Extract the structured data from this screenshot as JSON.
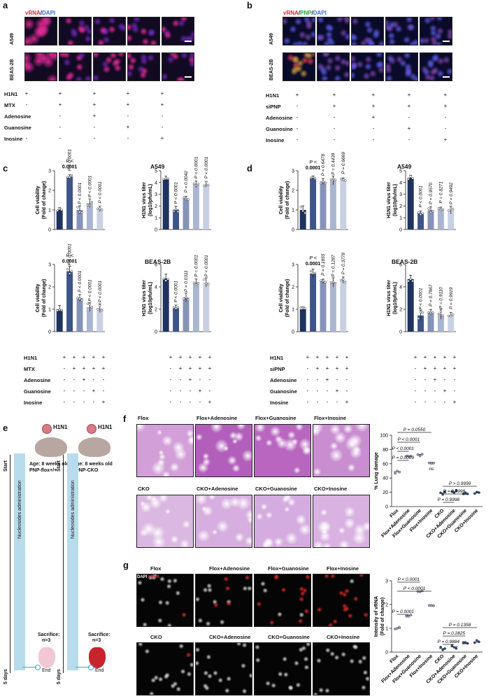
{
  "panels": {
    "a": "a",
    "b": "b",
    "c": "c",
    "d": "d",
    "e": "e",
    "f": "f",
    "g": "g"
  },
  "a": {
    "legend_vrna": "vRNA",
    "legend_sep": "/",
    "legend_dapi": "DAPI",
    "rows": [
      "A549",
      "BEAS-2B"
    ],
    "treatments": [
      {
        "label": "H1N1",
        "signs": [
          "+",
          "+",
          "+",
          "+",
          "+"
        ]
      },
      {
        "label": "MTX",
        "signs": [
          "-",
          "+",
          "+",
          "+",
          "+"
        ]
      },
      {
        "label": "Adenosine",
        "signs": [
          "-",
          "-",
          "+",
          "-",
          "-"
        ]
      },
      {
        "label": "Guanosine",
        "signs": [
          "-",
          "-",
          "-",
          "+",
          "-"
        ]
      },
      {
        "label": "Inosine",
        "signs": [
          "-",
          "-",
          "-",
          "-",
          "+"
        ]
      }
    ]
  },
  "b": {
    "legend_vrna": "vRNA",
    "legend_sep1": "/",
    "legend_pnp": "PNP",
    "legend_sep2": "/",
    "legend_dapi": "DAPI",
    "rows": [
      "A549",
      "BEAS-2B"
    ],
    "treatments": [
      {
        "label": "H1N1",
        "signs": [
          "+",
          "+",
          "+",
          "+",
          "+"
        ]
      },
      {
        "label": "siPNP",
        "signs": [
          "-",
          "+",
          "+",
          "+",
          "+"
        ]
      },
      {
        "label": "Adenosine",
        "signs": [
          "-",
          "-",
          "+",
          "-",
          "-"
        ]
      },
      {
        "label": "Guanosine",
        "signs": [
          "-",
          "-",
          "-",
          "+",
          "-"
        ]
      },
      {
        "label": "Inosine",
        "signs": [
          "-",
          "-",
          "-",
          "-",
          "+"
        ]
      }
    ]
  },
  "c": {
    "title_top": "A549",
    "title_bottom": "BEAS-2B",
    "treatments": [
      {
        "label": "H1N1",
        "signs": [
          "+",
          "+",
          "+",
          "+",
          "+",
          "+",
          "+",
          "+",
          "+",
          "+"
        ]
      },
      {
        "label": "MTX",
        "signs": [
          "-",
          "+",
          "+",
          "+",
          "+",
          "-",
          "+",
          "+",
          "+",
          "+"
        ]
      },
      {
        "label": "Adenosine",
        "signs": [
          "-",
          "-",
          "+",
          "-",
          "-",
          "-",
          "-",
          "+",
          "-",
          "-"
        ]
      },
      {
        "label": "Guanosine",
        "signs": [
          "-",
          "-",
          "-",
          "+",
          "-",
          "-",
          "-",
          "-",
          "+",
          "-"
        ]
      },
      {
        "label": "Inosine",
        "signs": [
          "-",
          "-",
          "-",
          "-",
          "+",
          "-",
          "-",
          "-",
          "-",
          "+"
        ]
      }
    ]
  },
  "d": {
    "title_top": "A549",
    "title_bottom": "BEAS-2B",
    "treatments": [
      {
        "label": "H1N1",
        "signs": [
          "+",
          "+",
          "+",
          "+",
          "+",
          "+",
          "+",
          "+",
          "+",
          "+"
        ]
      },
      {
        "label": "siPNP",
        "signs": [
          "-",
          "+",
          "+",
          "+",
          "+",
          "-",
          "+",
          "+",
          "+",
          "+"
        ]
      },
      {
        "label": "Adenosine",
        "signs": [
          "-",
          "-",
          "+",
          "-",
          "-",
          "-",
          "-",
          "+",
          "-",
          "-"
        ]
      },
      {
        "label": "Guanosine",
        "signs": [
          "-",
          "-",
          "-",
          "+",
          "-",
          "-",
          "-",
          "-",
          "+",
          "-"
        ]
      },
      {
        "label": "Inosine",
        "signs": [
          "-",
          "-",
          "-",
          "-",
          "+",
          "-",
          "-",
          "-",
          "-",
          "+"
        ]
      }
    ]
  },
  "e": {
    "virus": "H1N1",
    "mouse1": {
      "age": "Age: 8 weeks old",
      "genotype": "PNP-flox+/+",
      "sacrifice": "Sacrifice:",
      "n": "n=3"
    },
    "mouse2": {
      "age": "Age: 8 weeks old",
      "genotype": "PNP-CKO",
      "sacrifice": "Sacrifice:",
      "n": "n=3"
    },
    "timeline_label": "Nucleosides administration",
    "start": "Start",
    "end": "End",
    "days": "5 days"
  },
  "f": {
    "top_titles": [
      "Flox",
      "Flox+Adenosine",
      "Flox+Guanosine",
      "Flox+Inosine"
    ],
    "bottom_titles": [
      "CKO",
      "CKO+Adenosine",
      "CKO+Guanosine",
      "CKO+Inosine"
    ]
  },
  "g": {
    "top_titles": [
      "Flox",
      "Flox+Adenosine",
      "Flox+Guanosine",
      "Flox+Inosine"
    ],
    "bottom_titles": [
      "CKO",
      "CKO+Adenosine",
      "CKO+Guanosine",
      "CKO+Inosine"
    ],
    "legend_dapi": "DAPI",
    "legend_vrna": "vRNA"
  },
  "chart_data": [
    {
      "id": "c_a549_viability",
      "type": "bar",
      "categories": [
        "1",
        "2",
        "3",
        "4",
        "5"
      ],
      "values": [
        1.0,
        2.7,
        1.0,
        1.35,
        1.05
      ],
      "ylabel": "Cell viability\n(Fold of change)",
      "ylim": [
        0,
        3
      ],
      "yticks": [
        "0",
        "1",
        "2",
        "3"
      ],
      "pvals": [
        "P < 0.0001",
        "P < 0.0001",
        "P < 0.0001",
        "P < 0.0001"
      ],
      "p_first_two_line": [
        "P <",
        "0.0001"
      ]
    },
    {
      "id": "c_a549_titer",
      "type": "bar",
      "categories": [
        "1",
        "2",
        "3",
        "4",
        "5"
      ],
      "values": [
        4.3,
        1.7,
        2.65,
        3.85,
        3.85
      ],
      "ylabel": "H1N1 virus titer\n(log10pfu/mL)",
      "ylim": [
        0,
        5
      ],
      "yticks": [
        "0",
        "1",
        "2",
        "3",
        "4",
        "5"
      ],
      "pvals": [
        "P < 0.0001",
        "P = 0.0042",
        "P < 0.0001",
        "P < 0.0001"
      ]
    },
    {
      "id": "c_beas_viability",
      "type": "bar",
      "categories": [
        "1",
        "2",
        "3",
        "4",
        "5"
      ],
      "values": [
        1.0,
        2.7,
        1.5,
        1.1,
        1.05
      ],
      "ylabel": "Cell viability\n(Fold of change)",
      "ylim": [
        0,
        3
      ],
      "yticks": [
        "0",
        "1",
        "2",
        "3"
      ],
      "pvals": [
        "P < 0.0001",
        "P < 0.0001",
        "P < 0.0001",
        "P < 0.0001"
      ],
      "p_first_two_line": [
        "P <",
        "0.0001"
      ]
    },
    {
      "id": "c_beas_titer",
      "type": "bar",
      "categories": [
        "1",
        "2",
        "3",
        "4",
        "5"
      ],
      "values": [
        4.75,
        2.1,
        3.05,
        4.4,
        4.4
      ],
      "ylabel": "H1N1 virus titer\n(log10pfu/mL)",
      "ylim": [
        0,
        6
      ],
      "yticks": [
        "0",
        "2",
        "4",
        "6"
      ],
      "pvals": [
        "P < 0.0001",
        "P = 0.0311",
        "P = 0.0001",
        "P < 0.0001"
      ]
    },
    {
      "id": "d_a549_viability",
      "type": "bar",
      "categories": [
        "1",
        "2",
        "3",
        "4",
        "5"
      ],
      "values": [
        1.0,
        2.65,
        2.45,
        2.5,
        2.55
      ],
      "ylabel": "Cell viability\n(Fold of change)",
      "ylim": [
        0,
        3
      ],
      "yticks": [
        "0",
        "1",
        "2",
        "3"
      ],
      "pvals": [
        "P = 0.6478",
        "P = 0.4439",
        "P = 0.6669"
      ],
      "p_first_two_line": [
        "P <",
        "0.0001"
      ]
    },
    {
      "id": "d_a549_titer",
      "type": "bar",
      "categories": [
        "1",
        "2",
        "3",
        "4",
        "5"
      ],
      "values": [
        4.4,
        1.4,
        1.65,
        1.75,
        1.65
      ],
      "ylabel": "H1N1 virus titer\n(log10pfu/mL)",
      "ylim": [
        0,
        5
      ],
      "yticks": [
        "0",
        "1",
        "2",
        "3",
        "4",
        "5"
      ],
      "pvals": [
        "P < 0.0001",
        "P = 0.9570",
        "P = 0.8271",
        "P = 0.9492"
      ]
    },
    {
      "id": "d_beas_viability",
      "type": "bar",
      "categories": [
        "1",
        "2",
        "3",
        "4",
        "5"
      ],
      "values": [
        1.0,
        2.6,
        2.25,
        2.2,
        2.3
      ],
      "ylabel": "Cell viability\n(Fold of change)",
      "ylim": [
        0,
        3
      ],
      "yticks": [
        "0",
        "1",
        "2",
        "3"
      ],
      "pvals": [
        "P = 0.1855",
        "P = 0.1287",
        "P = 0.3778"
      ],
      "p_first_two_line": [
        "P <",
        "0.0001"
      ]
    },
    {
      "id": "d_beas_titer",
      "type": "bar",
      "categories": [
        "1",
        "2",
        "3",
        "4",
        "5"
      ],
      "values": [
        4.7,
        1.45,
        1.75,
        1.55,
        1.5
      ],
      "ylabel": "H1N1 virus titer\n(log10pfu/mL)",
      "ylim": [
        0,
        6
      ],
      "yticks": [
        "0",
        "2",
        "4",
        "6"
      ],
      "pvals": [
        "P < 0.0001",
        "P = 0.7867",
        "P = 0.9110",
        "P = 0.9919"
      ]
    },
    {
      "id": "f_lung",
      "type": "scatter",
      "categories": [
        "Flox",
        "Flox+Adenosine",
        "Flox+Guanosine",
        "Flox+Inosine",
        "CKO",
        "CKO+Adenosine",
        "CKO+Guanosine",
        "CKO+Inosine"
      ],
      "values": [
        49,
        71,
        73,
        62,
        19,
        21,
        17,
        19
      ],
      "ylabel": "% Lung damage",
      "ylim": [
        0,
        100
      ],
      "yticks": [
        "0",
        "20",
        "40",
        "60",
        "80",
        "100"
      ],
      "comparisons": [
        "P = 0.0550",
        "P < 0.0001",
        "P < 0.0001",
        "P = 0.0009",
        "ns",
        "P > 0.9999",
        "P = 0.9998",
        "P = 0.9998"
      ]
    },
    {
      "id": "g_vrna",
      "type": "scatter",
      "categories": [
        "Flox",
        "Flox+Adenosine",
        "Flox+Guanosine",
        "Flox+Inosine",
        "CKO",
        "CKO+Adenosine",
        "CKO+Guanosine",
        "CKO+Inosine"
      ],
      "values": [
        1.0,
        1.55,
        2.55,
        1.95,
        0.15,
        0.22,
        0.35,
        0.42
      ],
      "ylabel": "Intensity of vRNA\n(Fold of change)",
      "ylim": [
        0,
        3
      ],
      "yticks": [
        "0",
        "1",
        "2",
        "3"
      ],
      "comparisons": [
        "P < 0.0001",
        "P < 0.0001",
        "P = 0.0001",
        "P = 0.1358",
        "P = 0.2825",
        "P = 0.9884"
      ]
    }
  ],
  "colors": {
    "b1": "#1e3360",
    "b2": "#3d5488",
    "b3": "#8593b9",
    "b4": "#aab5d1",
    "b5": "#c9d0e2",
    "red": "#e0233a",
    "green": "#2a9d3a",
    "blue": "#3a6fd8",
    "timeline": "#b7dcec"
  }
}
